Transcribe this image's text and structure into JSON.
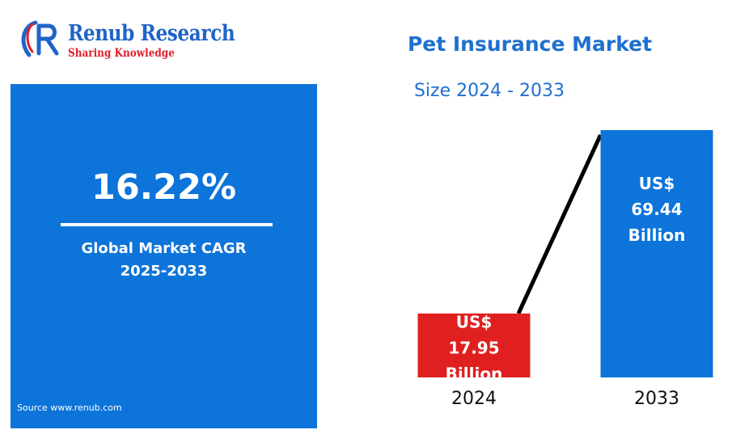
{
  "logo": {
    "name": "Renub Research",
    "tagline": "Sharing Knowledge",
    "colors": {
      "blue": "#1f64c8",
      "red": "#e0202a"
    }
  },
  "title": "Pet Insurance Market",
  "subtitle": "Size 2024 - 2033",
  "cagr_panel": {
    "value": "16.22%",
    "label_line1": "Global Market CAGR",
    "label_line2": "2025-2033",
    "source": "Source  www.renub.com",
    "background": "#0d74d9"
  },
  "chart_data": {
    "type": "bar",
    "title": "Pet Insurance Market",
    "subtitle": "Size 2024 - 2033",
    "categories": [
      "2024",
      "2033"
    ],
    "values": [
      17.95,
      69.44
    ],
    "unit": "US$ Billion",
    "data_labels": [
      [
        "US$",
        "17.95",
        "Billion"
      ],
      [
        "US$",
        "69.44",
        "Billion"
      ]
    ],
    "colors": [
      "#e02020",
      "#0d74d9"
    ],
    "connector_line": true,
    "grid": false,
    "legend": "none"
  }
}
